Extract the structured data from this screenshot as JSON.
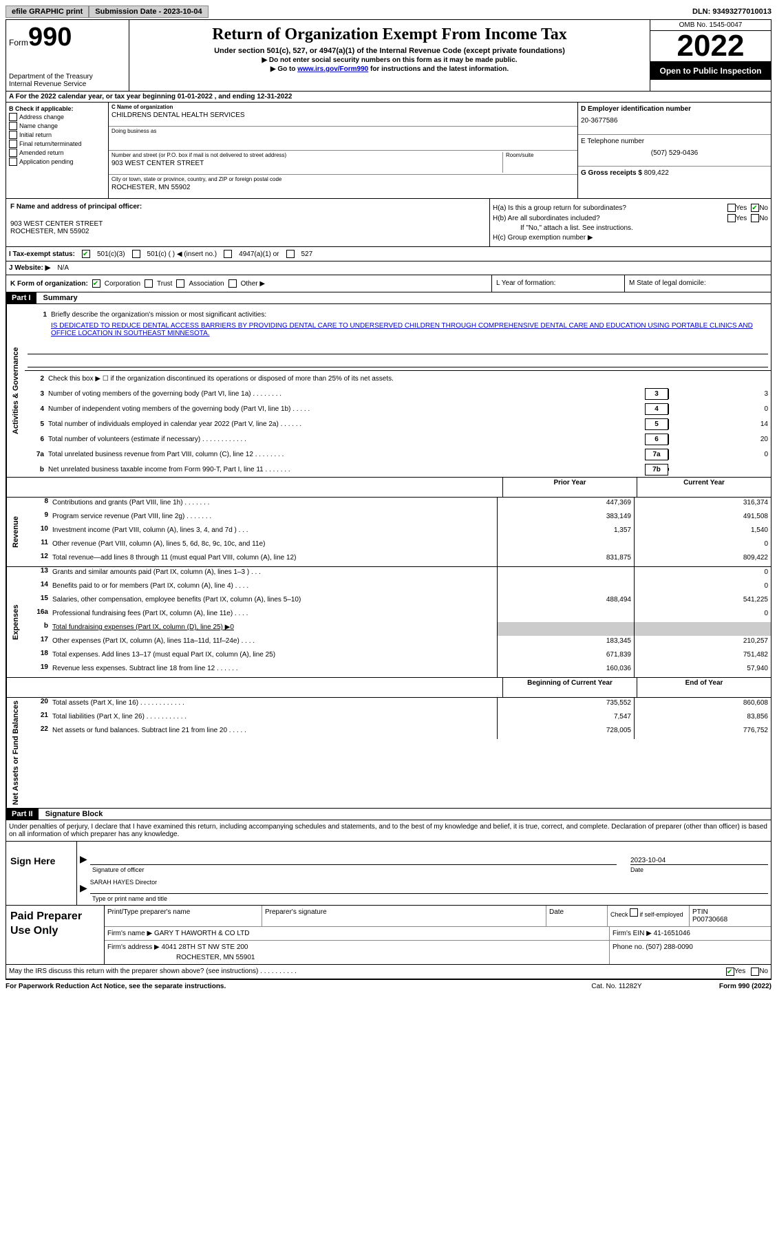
{
  "top": {
    "efile": "efile GRAPHIC print",
    "submission_label": "Submission Date - 2023-10-04",
    "dln": "DLN: 93493277010013"
  },
  "header": {
    "form_prefix": "Form",
    "form_no": "990",
    "dept": "Department of the Treasury",
    "irs": "Internal Revenue Service",
    "title": "Return of Organization Exempt From Income Tax",
    "sub1": "Under section 501(c), 527, or 4947(a)(1) of the Internal Revenue Code (except private foundations)",
    "sub2": "▶ Do not enter social security numbers on this form as it may be made public.",
    "sub3_pre": "▶ Go to ",
    "sub3_link": "www.irs.gov/Form990",
    "sub3_post": " for instructions and the latest information.",
    "omb": "OMB No. 1545-0047",
    "year": "2022",
    "open": "Open to Public Inspection"
  },
  "rowA": "A For the 2022 calendar year, or tax year beginning 01-01-2022    , and ending 12-31-2022",
  "boxB": {
    "label": "B Check if applicable:",
    "items": [
      "Address change",
      "Name change",
      "Initial return",
      "Final return/terminated",
      "Amended return",
      "Application pending"
    ]
  },
  "boxC": {
    "name_label": "C Name of organization",
    "name": "CHILDRENS DENTAL HEALTH SERVICES",
    "dba_label": "Doing business as",
    "addr_label": "Number and street (or P.O. box if mail is not delivered to street address)",
    "room_label": "Room/suite",
    "addr": "903 WEST CENTER STREET",
    "city_label": "City or town, state or province, country, and ZIP or foreign postal code",
    "city": "ROCHESTER, MN  55902"
  },
  "boxD": {
    "label": "D Employer identification number",
    "val": "20-3677586"
  },
  "boxE": {
    "label": "E Telephone number",
    "val": "(507) 529-0436"
  },
  "boxG": {
    "label": "G Gross receipts $",
    "val": "809,422"
  },
  "boxF": {
    "label": "F  Name and address of principal officer:",
    "addr1": "903 WEST CENTER STREET",
    "addr2": "ROCHESTER, MN  55902"
  },
  "boxH": {
    "ha": "H(a)  Is this a group return for subordinates?",
    "hb": "H(b)  Are all subordinates included?",
    "hb_note": "If \"No,\" attach a list. See instructions.",
    "hc": "H(c)  Group exemption number ▶",
    "yes": "Yes",
    "no": "No"
  },
  "taxStatus": {
    "label": "I    Tax-exempt status:",
    "c3": "501(c)(3)",
    "c": "501(c) (  ) ◀ (insert no.)",
    "a1": "4947(a)(1) or",
    "s527": "527"
  },
  "website": {
    "label": "J   Website: ▶",
    "val": "N/A"
  },
  "rowK": {
    "label": "K Form of organization:",
    "corp": "Corporation",
    "trust": "Trust",
    "assoc": "Association",
    "other": "Other ▶",
    "L": "L Year of formation:",
    "M": "M State of legal domicile:"
  },
  "parts": {
    "p1": "Part I",
    "p1t": "Summary",
    "p2": "Part II",
    "p2t": "Signature Block"
  },
  "rotLabels": {
    "ag": "Activities & Governance",
    "rev": "Revenue",
    "exp": "Expenses",
    "net": "Net Assets or Fund Balances"
  },
  "line1": {
    "num": "1",
    "label": "Briefly describe the organization's mission or most significant activities:",
    "mission": "IS DEDICATED TO REDUCE DENTAL ACCESS BARRIERS BY PROVIDING DENTAL CARE TO UNDERSERVED CHILDREN THROUGH COMPREHENSIVE DENTAL CARE AND EDUCATION USING PORTABLE CLINICS AND OFFICE LOCATION IN SOUTHEAST MINNESOTA."
  },
  "govLines": [
    {
      "n": "2",
      "t": "Check this box ▶ ☐  if the organization discontinued its operations or disposed of more than 25% of its net assets."
    },
    {
      "n": "3",
      "t": "Number of voting members of the governing body (Part VI, line 1a)   .    .    .    .    .    .    .    .",
      "b": "3",
      "v": "3"
    },
    {
      "n": "4",
      "t": "Number of independent voting members of the governing body (Part VI, line 1b)   .    .    .    .    .",
      "b": "4",
      "v": "0"
    },
    {
      "n": "5",
      "t": "Total number of individuals employed in calendar year 2022 (Part V, line 2a)   .    .    .    .    .    .",
      "b": "5",
      "v": "14"
    },
    {
      "n": "6",
      "t": "Total number of volunteers (estimate if necessary)    .    .    .    .    .    .    .    .    .    .    .    .",
      "b": "6",
      "v": "20"
    },
    {
      "n": "7a",
      "t": "Total unrelated business revenue from Part VIII, column (C), line 12    .    .    .    .    .    .    .    .",
      "b": "7a",
      "v": "0"
    },
    {
      "n": "b",
      "t": "Net unrelated business taxable income from Form 990-T, Part I, line 11   .    .    .    .    .    .    .",
      "b": "7b",
      "v": ""
    }
  ],
  "colHeaders": {
    "prior": "Prior Year",
    "current": "Current Year",
    "boy": "Beginning of Current Year",
    "eoy": "End of Year"
  },
  "revLines": [
    {
      "n": "8",
      "t": "Contributions and grants (Part VIII, line 1h)   .    .    .    .    .    .    .",
      "p": "447,369",
      "c": "316,374"
    },
    {
      "n": "9",
      "t": "Program service revenue (Part VIII, line 2g)   .    .    .    .    .    .    .",
      "p": "383,149",
      "c": "491,508"
    },
    {
      "n": "10",
      "t": "Investment income (Part VIII, column (A), lines 3, 4, and 7d )   .    .    .",
      "p": "1,357",
      "c": "1,540"
    },
    {
      "n": "11",
      "t": "Other revenue (Part VIII, column (A), lines 5, 6d, 8c, 9c, 10c, and 11e)",
      "p": "",
      "c": "0"
    },
    {
      "n": "12",
      "t": "Total revenue—add lines 8 through 11 (must equal Part VIII, column (A), line 12)",
      "p": "831,875",
      "c": "809,422"
    }
  ],
  "expLines": [
    {
      "n": "13",
      "t": "Grants and similar amounts paid (Part IX, column (A), lines 1–3 )   .    .    .",
      "p": "",
      "c": "0"
    },
    {
      "n": "14",
      "t": "Benefits paid to or for members (Part IX, column (A), line 4)   .    .    .    .",
      "p": "",
      "c": "0"
    },
    {
      "n": "15",
      "t": "Salaries, other compensation, employee benefits (Part IX, column (A), lines 5–10)",
      "p": "488,494",
      "c": "541,225"
    },
    {
      "n": "16a",
      "t": "Professional fundraising fees (Part IX, column (A), line 11e)   .    .    .    .",
      "p": "",
      "c": "0"
    },
    {
      "n": "b",
      "t": "Total fundraising expenses (Part IX, column (D), line 25) ▶0",
      "grey": true
    },
    {
      "n": "17",
      "t": "Other expenses (Part IX, column (A), lines 11a–11d, 11f–24e)   .    .    .    .",
      "p": "183,345",
      "c": "210,257"
    },
    {
      "n": "18",
      "t": "Total expenses. Add lines 13–17 (must equal Part IX, column (A), line 25)",
      "p": "671,839",
      "c": "751,482"
    },
    {
      "n": "19",
      "t": "Revenue less expenses. Subtract line 18 from line 12   .    .    .    .    .    .",
      "p": "160,036",
      "c": "57,940"
    }
  ],
  "netLines": [
    {
      "n": "20",
      "t": "Total assets (Part X, line 16)   .    .    .    .    .    .    .    .    .    .    .    .",
      "p": "735,552",
      "c": "860,608"
    },
    {
      "n": "21",
      "t": "Total liabilities (Part X, line 26)   .    .    .    .    .    .    .    .    .    .    .",
      "p": "7,547",
      "c": "83,856"
    },
    {
      "n": "22",
      "t": "Net assets or fund balances. Subtract line 21 from line 20   .    .    .    .    .",
      "p": "728,005",
      "c": "776,752"
    }
  ],
  "sigDecl": "Under penalties of perjury, I declare that I have examined this return, including accompanying schedules and statements, and to the best of my knowledge and belief, it is true, correct, and complete. Declaration of preparer (other than officer) is based on all information of which preparer has any knowledge.",
  "sign": {
    "here": "Sign Here",
    "sig_of": "Signature of officer",
    "date": "2023-10-04",
    "date_lbl": "Date",
    "name": "SARAH HAYES  Director",
    "name_lbl": "Type or print name and title"
  },
  "prep": {
    "left": "Paid Preparer Use Only",
    "h1": "Print/Type preparer's name",
    "h2": "Preparer's signature",
    "h3": "Date",
    "h4_pre": "Check",
    "h4_post": "if self-employed",
    "h5": "PTIN",
    "ptin": "P00730668",
    "firm_name_lbl": "Firm's name    ▶",
    "firm_name": "GARY T HAWORTH & CO LTD",
    "firm_ein_lbl": "Firm's EIN ▶",
    "firm_ein": "41-1651046",
    "firm_addr_lbl": "Firm's address ▶",
    "firm_addr1": "4041 28TH ST NW STE 200",
    "firm_addr2": "ROCHESTER, MN  55901",
    "phone_lbl": "Phone no.",
    "phone": "(507) 288-0090"
  },
  "discuss": "May the IRS discuss this return with the preparer shown above? (see instructions)   .    .    .    .    .    .    .    .    .    .",
  "footer": {
    "pra": "For Paperwork Reduction Act Notice, see the separate instructions.",
    "cat": "Cat. No. 11282Y",
    "form": "Form 990 (2022)"
  }
}
